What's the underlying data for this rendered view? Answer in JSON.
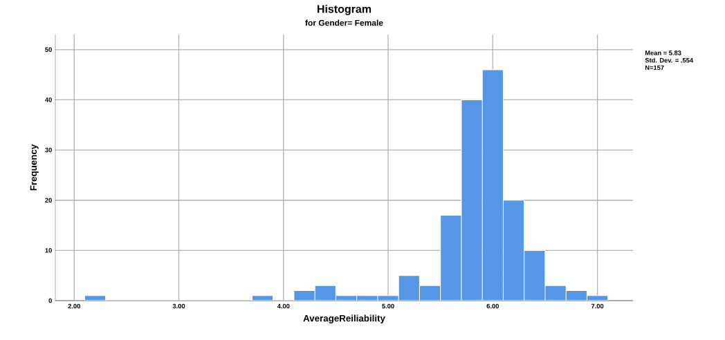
{
  "chart_data": {
    "type": "histogram",
    "title": "Histogram",
    "subtitle": "for Gender= Female",
    "xlabel": "AverageReiliability",
    "ylabel": "Frequency",
    "bins": [
      2.1,
      2.3,
      2.5,
      2.7,
      2.9,
      3.1,
      3.3,
      3.5,
      3.7,
      3.9,
      4.1,
      4.3,
      4.5,
      4.7,
      4.9,
      5.1,
      5.3,
      5.5,
      5.7,
      5.9,
      6.1,
      6.3,
      6.5,
      6.7,
      6.9,
      7.1
    ],
    "values": [
      1,
      0,
      0,
      0,
      0,
      0,
      0,
      0,
      1,
      0,
      2,
      3,
      1,
      1,
      1,
      5,
      3,
      17,
      40,
      46,
      20,
      10,
      3,
      2,
      1
    ],
    "color": "#5596e6",
    "xlim": [
      1.82,
      7.34
    ],
    "ylim": [
      0,
      53
    ],
    "xticks": [
      {
        "value": 2,
        "label": "2.00"
      },
      {
        "value": 3,
        "label": "3.00"
      },
      {
        "value": 4,
        "label": "4.00"
      },
      {
        "value": 5,
        "label": "5.00"
      },
      {
        "value": 6,
        "label": "6.00"
      },
      {
        "value": 7,
        "label": "7.00"
      }
    ],
    "yticks": [
      0,
      10,
      20,
      30,
      40,
      50
    ],
    "grid": true,
    "annotations": [
      "Mean = 5.83",
      "Std. Dev. = .554",
      "N=157"
    ]
  }
}
